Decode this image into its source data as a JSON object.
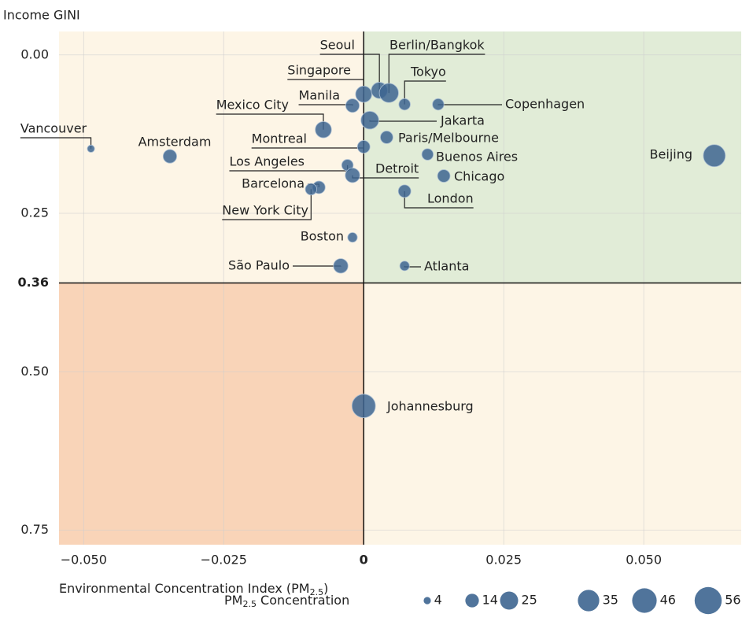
{
  "chart_data": {
    "type": "bubble",
    "y_label": "Income GINI",
    "x_label": {
      "text": "Environmental Concentration Index (PM",
      "sub": "2.5",
      "close": ")"
    },
    "legend_title": {
      "text": "PM",
      "sub": "2.5",
      "close": " Concentration"
    },
    "legend_sizes": [
      4,
      14,
      25,
      35,
      46,
      56
    ],
    "labels": [
      "Vancouver",
      "Amsterdam",
      "Mexico City",
      "Manila",
      "Singapore",
      "Seoul",
      "Berlin/Bangkok",
      "Tokyo",
      "Copenhagen",
      "Jakarta",
      "Paris/Melbourne",
      "Montreal",
      "Buenos Aires",
      "Los Angeles",
      "Detroit",
      "Chicago",
      "Barcelona",
      "New York City",
      "London",
      "Boston",
      "São Paulo",
      "Atlanta",
      "Beijing",
      "Johannesburg"
    ],
    "x": [
      -0.0487,
      -0.0346,
      -0.0072,
      -0.002,
      0.0,
      0.0028,
      0.0045,
      0.0073,
      0.0133,
      0.0011,
      0.0041,
      0.0,
      0.0114,
      -0.0029,
      -0.002,
      0.0143,
      -0.008,
      -0.0094,
      0.0073,
      -0.002,
      -0.0041,
      0.0073,
      0.0626,
      0.0
    ],
    "y": [
      0.148,
      0.16,
      0.118,
      0.08,
      0.062,
      0.056,
      0.06,
      0.078,
      0.078,
      0.103,
      0.13,
      0.145,
      0.157,
      0.174,
      0.19,
      0.191,
      0.209,
      0.212,
      0.215,
      0.288,
      0.333,
      0.333,
      0.159,
      0.554
    ],
    "sizes": [
      4,
      14,
      20,
      14,
      20,
      20,
      28,
      10,
      10,
      24,
      12,
      12,
      10,
      10,
      16,
      12,
      12,
      10,
      12,
      7,
      16,
      7,
      37,
      42
    ],
    "color": "#3d6590",
    "xlim": [
      -0.0544,
      0.0674
    ],
    "ylim": [
      -0.037,
      0.773
    ],
    "y_reversed": true,
    "xticks": [
      {
        "value": -0.05,
        "label": "−0.050"
      },
      {
        "value": -0.025,
        "label": "−0.025"
      },
      0,
      {
        "value": 0.025,
        "label": "0.025"
      },
      {
        "value": 0.05,
        "label": "0.050"
      }
    ],
    "yticks": [
      {
        "value": 0,
        "label": "0.00"
      },
      0.25,
      0.36,
      {
        "value": 0.5,
        "label": "0.50"
      },
      0.75
    ],
    "thresholds": {
      "x": 0,
      "y": 0.36
    },
    "quadrant_colors": {
      "top_left": "#fdf5e6",
      "top_right": "#e1ecd7",
      "bottom_left": "#f9d4b8",
      "bottom_right": "#fdf5e6"
    },
    "grid": true
  }
}
